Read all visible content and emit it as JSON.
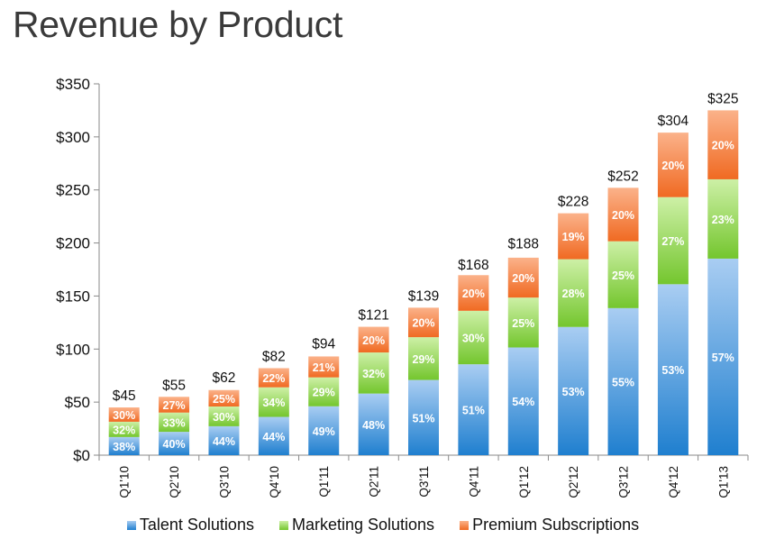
{
  "title": "Revenue by Product",
  "chart_data": {
    "type": "bar",
    "stacked": true,
    "title": "Revenue by Product",
    "xlabel": "",
    "ylabel": "",
    "ylim": [
      0,
      350
    ],
    "y_ticks": [
      "$0",
      "$50",
      "$100",
      "$150",
      "$200",
      "$250",
      "$300",
      "$350"
    ],
    "grid": false,
    "legend_position": "bottom",
    "categories": [
      "Q1'10",
      "Q2'10",
      "Q3'10",
      "Q4'10",
      "Q1'11",
      "Q2'11",
      "Q3'11",
      "Q4'11",
      "Q1'12",
      "Q2'12",
      "Q3'12",
      "Q4'12",
      "Q1'13"
    ],
    "totals": [
      45,
      55,
      62,
      82,
      94,
      121,
      139,
      168,
      188,
      228,
      252,
      304,
      325
    ],
    "total_labels": [
      "$45",
      "$55",
      "$62",
      "$82",
      "$94",
      "$121",
      "$139",
      "$168",
      "$188",
      "$228",
      "$252",
      "$304",
      "$325"
    ],
    "series": [
      {
        "name": "Talent Solutions",
        "color": "#4a90d9",
        "percent": [
          38,
          40,
          44,
          44,
          49,
          48,
          51,
          51,
          54,
          53,
          55,
          53,
          57
        ],
        "labels": [
          "38%",
          "40%",
          "44%",
          "44%",
          "49%",
          "48%",
          "51%",
          "51%",
          "54%",
          "53%",
          "55%",
          "53%",
          "57%"
        ]
      },
      {
        "name": "Marketing Solutions",
        "color": "#7fcf3a",
        "percent": [
          32,
          33,
          30,
          34,
          29,
          32,
          29,
          30,
          25,
          28,
          25,
          27,
          23
        ],
        "labels": [
          "32%",
          "33%",
          "30%",
          "34%",
          "29%",
          "32%",
          "29%",
          "30%",
          "25%",
          "28%",
          "25%",
          "27%",
          "23%"
        ]
      },
      {
        "name": "Premium Subscriptions",
        "color": "#f47c3c",
        "percent": [
          30,
          27,
          25,
          22,
          21,
          20,
          20,
          20,
          20,
          19,
          20,
          20,
          20
        ],
        "labels": [
          "30%",
          "27%",
          "25%",
          "22%",
          "21%",
          "20%",
          "20%",
          "20%",
          "20%",
          "19%",
          "20%",
          "20%",
          "20%"
        ]
      }
    ]
  }
}
